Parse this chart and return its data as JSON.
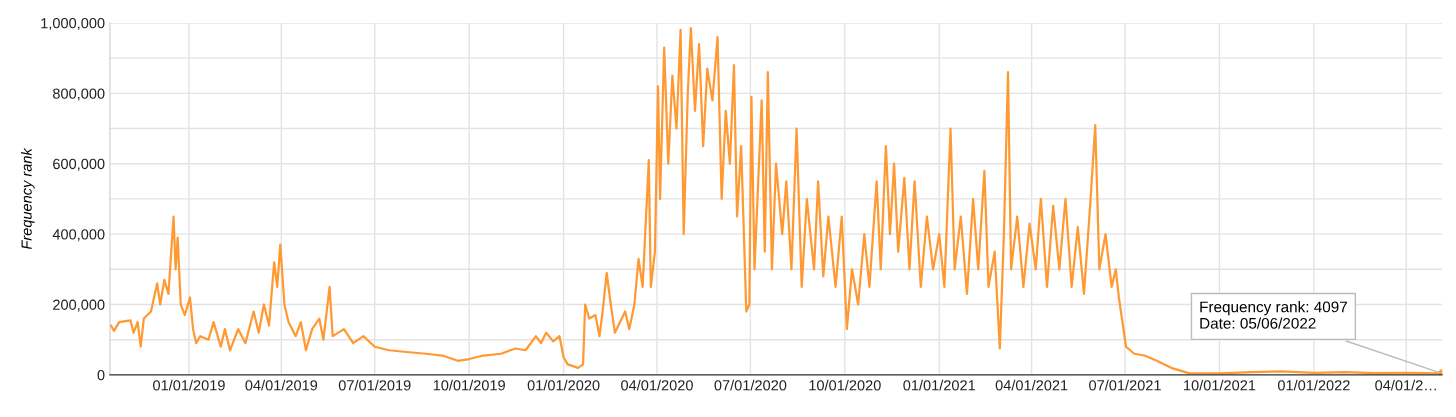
{
  "chart_data": {
    "type": "line",
    "ylabel": "Frequency rank",
    "xlim": [
      "2018-10-16",
      "2022-05-06"
    ],
    "xticks": [
      {
        "value": "2019-01-01",
        "label": "01/01/2019"
      },
      {
        "value": "2019-04-01",
        "label": "04/01/2019"
      },
      {
        "value": "2019-07-01",
        "label": "07/01/2019"
      },
      {
        "value": "2019-10-01",
        "label": "10/01/2019"
      },
      {
        "value": "2020-01-01",
        "label": "01/01/2020"
      },
      {
        "value": "2020-04-01",
        "label": "04/01/2020"
      },
      {
        "value": "2020-07-01",
        "label": "07/01/2020"
      },
      {
        "value": "2020-10-01",
        "label": "10/01/2020"
      },
      {
        "value": "2021-01-01",
        "label": "01/01/2021"
      },
      {
        "value": "2021-04-01",
        "label": "04/01/2021"
      },
      {
        "value": "2021-07-01",
        "label": "07/01/2021"
      },
      {
        "value": "2021-10-01",
        "label": "10/01/2021"
      },
      {
        "value": "2022-01-01",
        "label": "01/01/2022"
      },
      {
        "value": "2022-04-01",
        "label": "04/01/2…"
      }
    ],
    "ylim": [
      0,
      1000000
    ],
    "yticks": [
      0,
      {
        "value": 100000,
        "label": null
      },
      {
        "value": 200000,
        "label": "200,000"
      },
      {
        "value": 300000,
        "label": null
      },
      {
        "value": 400000,
        "label": "400,000"
      },
      {
        "value": 500000,
        "label": null
      },
      {
        "value": 600000,
        "label": "600,000"
      },
      {
        "value": 700000,
        "label": null
      },
      {
        "value": 800000,
        "label": "800,000"
      },
      {
        "value": 900000,
        "label": null
      },
      {
        "value": 1000000,
        "label": "1,000,000"
      }
    ],
    "grid": true,
    "marker": "none",
    "line_style": "solid",
    "annotations": [
      {
        "text": "Frequency rank: 4097\nDate: 05/06/2022",
        "x": "2022-05-06",
        "y": 4097
      }
    ],
    "series": [
      {
        "color": "#ff9933",
        "x": [
          "2018-10-17",
          "2018-10-20",
          "2018-10-25",
          "2018-11-05",
          "2018-11-08",
          "2018-11-12",
          "2018-11-15",
          "2018-11-18",
          "2018-11-25",
          "2018-12-01",
          "2018-12-04",
          "2018-12-08",
          "2018-12-12",
          "2018-12-17",
          "2018-12-19",
          "2018-12-21",
          "2018-12-24",
          "2018-12-28",
          "2019-01-02",
          "2019-01-05",
          "2019-01-08",
          "2019-01-12",
          "2019-01-20",
          "2019-01-25",
          "2019-02-01",
          "2019-02-05",
          "2019-02-10",
          "2019-02-18",
          "2019-02-25",
          "2019-03-05",
          "2019-03-10",
          "2019-03-15",
          "2019-03-20",
          "2019-03-25",
          "2019-03-28",
          "2019-03-31",
          "2019-04-04",
          "2019-04-08",
          "2019-04-15",
          "2019-04-20",
          "2019-04-25",
          "2019-05-01",
          "2019-05-08",
          "2019-05-12",
          "2019-05-18",
          "2019-05-21",
          "2019-06-01",
          "2019-06-10",
          "2019-06-20",
          "2019-07-01",
          "2019-07-15",
          "2019-08-01",
          "2019-08-20",
          "2019-09-05",
          "2019-09-20",
          "2019-10-01",
          "2019-10-15",
          "2019-11-01",
          "2019-11-15",
          "2019-11-25",
          "2019-12-05",
          "2019-12-10",
          "2019-12-15",
          "2019-12-22",
          "2019-12-28",
          "2020-01-01",
          "2020-01-05",
          "2020-01-15",
          "2020-01-20",
          "2020-01-22",
          "2020-01-26",
          "2020-02-01",
          "2020-02-05",
          "2020-02-08",
          "2020-02-12",
          "2020-02-16",
          "2020-02-20",
          "2020-03-01",
          "2020-03-05",
          "2020-03-10",
          "2020-03-14",
          "2020-03-18",
          "2020-03-24",
          "2020-03-26",
          "2020-03-30",
          "2020-04-02",
          "2020-04-04",
          "2020-04-08",
          "2020-04-12",
          "2020-04-16",
          "2020-04-20",
          "2020-04-24",
          "2020-04-27",
          "2020-05-01",
          "2020-05-04",
          "2020-05-08",
          "2020-05-12",
          "2020-05-16",
          "2020-05-20",
          "2020-05-25",
          "2020-05-30",
          "2020-06-03",
          "2020-06-07",
          "2020-06-11",
          "2020-06-15",
          "2020-06-18",
          "2020-06-22",
          "2020-06-27",
          "2020-06-30",
          "2020-07-02",
          "2020-07-05",
          "2020-07-12",
          "2020-07-15",
          "2020-07-18",
          "2020-07-22",
          "2020-07-26",
          "2020-08-01",
          "2020-08-05",
          "2020-08-10",
          "2020-08-15",
          "2020-08-20",
          "2020-08-25",
          "2020-09-01",
          "2020-09-05",
          "2020-09-10",
          "2020-09-15",
          "2020-09-22",
          "2020-09-28",
          "2020-10-03",
          "2020-10-08",
          "2020-10-14",
          "2020-10-20",
          "2020-10-25",
          "2020-11-01",
          "2020-11-05",
          "2020-11-10",
          "2020-11-14",
          "2020-11-18",
          "2020-11-22",
          "2020-11-28",
          "2020-12-03",
          "2020-12-08",
          "2020-12-14",
          "2020-12-20",
          "2020-12-26",
          "2021-01-01",
          "2021-01-06",
          "2021-01-12",
          "2021-01-16",
          "2021-01-22",
          "2021-01-28",
          "2021-02-03",
          "2021-02-08",
          "2021-02-14",
          "2021-02-18",
          "2021-02-24",
          "2021-03-01",
          "2021-03-05",
          "2021-03-09",
          "2021-03-12",
          "2021-03-18",
          "2021-03-24",
          "2021-03-30",
          "2021-04-05",
          "2021-04-10",
          "2021-04-16",
          "2021-04-22",
          "2021-04-28",
          "2021-05-04",
          "2021-05-10",
          "2021-05-16",
          "2021-05-22",
          "2021-05-28",
          "2021-06-02",
          "2021-06-06",
          "2021-06-12",
          "2021-06-18",
          "2021-06-22",
          "2021-06-25",
          "2021-07-02",
          "2021-07-10",
          "2021-07-20",
          "2021-08-01",
          "2021-08-15",
          "2021-09-01",
          "2021-10-01",
          "2021-11-01",
          "2021-12-01",
          "2022-01-01",
          "2022-02-01",
          "2022-03-01",
          "2022-04-01",
          "2022-05-06"
        ],
        "values": [
          140000,
          125000,
          150000,
          155000,
          120000,
          150000,
          80000,
          160000,
          180000,
          260000,
          200000,
          270000,
          230000,
          450000,
          300000,
          390000,
          200000,
          170000,
          220000,
          130000,
          90000,
          110000,
          100000,
          150000,
          80000,
          130000,
          70000,
          130000,
          90000,
          180000,
          120000,
          200000,
          140000,
          320000,
          250000,
          370000,
          200000,
          150000,
          110000,
          150000,
          70000,
          130000,
          160000,
          100000,
          250000,
          110000,
          130000,
          90000,
          110000,
          80000,
          70000,
          65000,
          60000,
          55000,
          40000,
          45000,
          55000,
          60000,
          75000,
          70000,
          110000,
          90000,
          120000,
          95000,
          110000,
          50000,
          30000,
          20000,
          30000,
          200000,
          160000,
          170000,
          110000,
          180000,
          290000,
          200000,
          120000,
          180000,
          130000,
          200000,
          330000,
          250000,
          610000,
          250000,
          350000,
          820000,
          500000,
          930000,
          600000,
          850000,
          700000,
          980000,
          400000,
          800000,
          985000,
          750000,
          940000,
          650000,
          870000,
          780000,
          960000,
          500000,
          750000,
          600000,
          880000,
          450000,
          650000,
          180000,
          200000,
          790000,
          300000,
          780000,
          350000,
          860000,
          300000,
          600000,
          400000,
          550000,
          300000,
          700000,
          250000,
          500000,
          300000,
          550000,
          280000,
          450000,
          250000,
          450000,
          130000,
          300000,
          200000,
          400000,
          250000,
          550000,
          300000,
          650000,
          400000,
          600000,
          350000,
          560000,
          300000,
          550000,
          250000,
          450000,
          300000,
          400000,
          250000,
          700000,
          300000,
          450000,
          230000,
          500000,
          300000,
          580000,
          250000,
          350000,
          75000,
          400000,
          860000,
          300000,
          450000,
          250000,
          430000,
          300000,
          500000,
          250000,
          480000,
          300000,
          500000,
          250000,
          420000,
          230000,
          480000,
          710000,
          300000,
          400000,
          250000,
          300000,
          220000,
          80000,
          60000,
          55000,
          40000,
          20000,
          5000,
          4000,
          8000,
          10000,
          6000,
          8000,
          5000,
          6000,
          4097
        ]
      }
    ]
  }
}
